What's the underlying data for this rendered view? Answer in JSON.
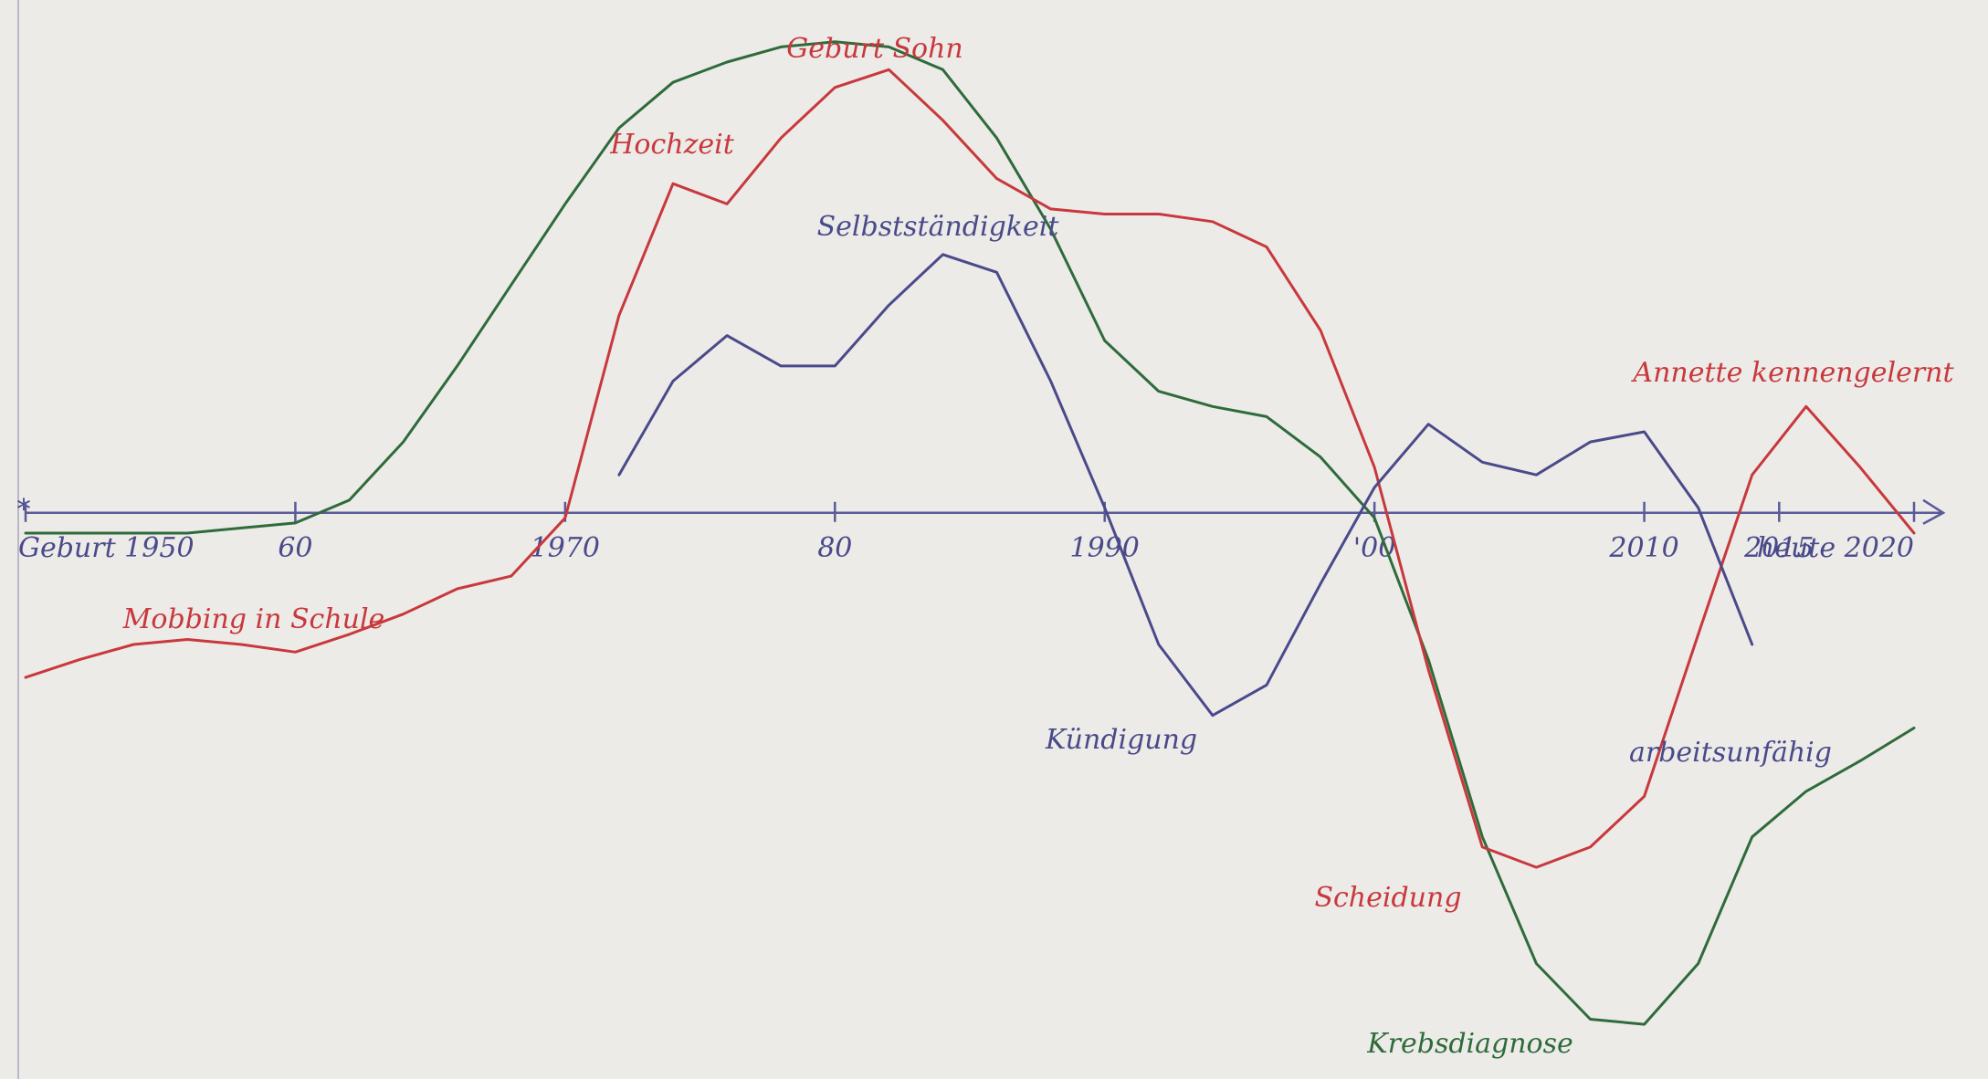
{
  "chart_data": {
    "type": "line",
    "x": [
      1950,
      1952,
      1954,
      1956,
      1958,
      1960,
      1962,
      1964,
      1966,
      1968,
      1970,
      1972,
      1974,
      1976,
      1978,
      1980,
      1982,
      1984,
      1986,
      1988,
      1990,
      1992,
      1994,
      1996,
      1998,
      2000,
      2002,
      2004,
      2006,
      2008,
      2010,
      2012,
      2014,
      2016,
      2018,
      2020
    ],
    "series": [
      {
        "color": "#2f6b3a",
        "values": [
          -0.4,
          -0.4,
          -0.4,
          -0.4,
          -0.3,
          -0.2,
          0.25,
          1.4,
          2.9,
          4.5,
          6.1,
          7.6,
          8.5,
          8.9,
          9.2,
          9.3,
          9.2,
          8.75,
          7.4,
          5.6,
          3.4,
          2.4,
          2.1,
          1.9,
          1.1,
          -0.1,
          -2.9,
          -6.4,
          -8.9,
          -10,
          -10.1,
          -8.9,
          -6.4,
          -5.5,
          -4.9,
          -4.25
        ]
      },
      {
        "color": "#c8383c",
        "values": [
          -3.25,
          -2.9,
          -2.6,
          -2.5,
          -2.6,
          -2.75,
          -2.4,
          -2,
          -1.5,
          -1.25,
          -0.1,
          3.9,
          6.5,
          6.1,
          7.4,
          8.4,
          8.75,
          7.75,
          6.6,
          6,
          5.9,
          5.9,
          5.75,
          5.25,
          3.6,
          0.9,
          -3.1,
          -6.6,
          -7,
          -6.6,
          -5.6,
          -2.4,
          0.75,
          2.1,
          0.9,
          -0.4
        ]
      },
      {
        "color": "#4a4a8a",
        "values": [
          null,
          null,
          null,
          null,
          null,
          null,
          null,
          null,
          null,
          null,
          null,
          0.75,
          2.6,
          3.5,
          2.9,
          2.9,
          4.1,
          5.1,
          4.75,
          2.6,
          0.1,
          -2.6,
          -4,
          -3.4,
          -1.4,
          0.5,
          1.75,
          1,
          0.75,
          1.4,
          1.6,
          0.1,
          -2.6,
          null,
          null,
          null
        ]
      }
    ],
    "xlim": [
      1950,
      2020
    ],
    "xticks": [
      {
        "value": 1950,
        "label": "Geburt 1950"
      },
      {
        "value": 1960,
        "label": "60"
      },
      1970,
      {
        "value": 1980,
        "label": "80"
      },
      1990,
      {
        "value": 2000,
        "label": "'00"
      },
      2010,
      2015,
      {
        "value": 2020,
        "label": "heute 2020"
      }
    ],
    "ylim": [
      -11,
      10
    ],
    "annotations": [
      {
        "text": "Geburt Sohn",
        "color": "#c8383c"
      },
      {
        "text": "Hochzeit",
        "color": "#c8383c"
      },
      {
        "text": "Selbstständigkeit",
        "color": "#4a4a8a"
      },
      {
        "text": "Kündigung",
        "color": "#4a4a8a"
      },
      {
        "text": "Scheidung",
        "color": "#c8383c"
      },
      {
        "text": "Krebsdiagnose",
        "color": "#2f6b3a"
      },
      {
        "text": "arbeitsunfähig",
        "color": "#4a4a8a"
      },
      {
        "text": "Annette kennengelernt",
        "color": "#c8383c"
      },
      {
        "text": "Mobbing in Schule",
        "color": "#c8383c"
      }
    ]
  }
}
